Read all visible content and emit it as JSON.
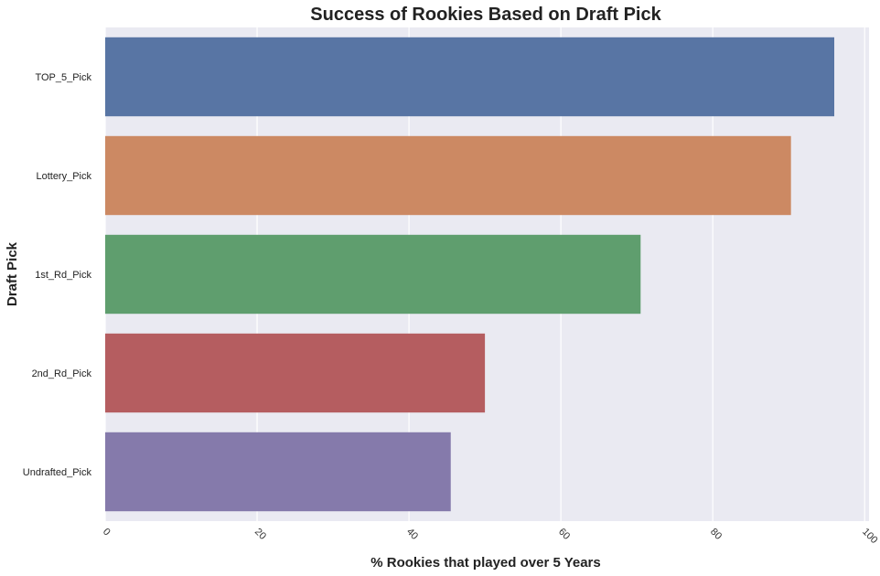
{
  "chart_data": {
    "type": "bar",
    "orientation": "horizontal",
    "title": "Success of Rookies Based on Draft Pick",
    "xlabel": "% Rookies that played over 5 Years",
    "ylabel": "Draft Pick",
    "categories": [
      "TOP_5_Pick",
      "Lottery_Pick",
      "1st_Rd_Pick",
      "2nd_Rd_Pick",
      "Undrafted_Pick"
    ],
    "values": [
      96.0,
      90.3,
      70.5,
      50.0,
      45.5
    ],
    "colors": [
      "#5875a4",
      "#cc8963",
      "#5f9e6e",
      "#b55d60",
      "#857aab"
    ],
    "xlim": [
      0,
      100
    ],
    "xticks": [
      0,
      20,
      40,
      60,
      80,
      100
    ],
    "grid": true,
    "background": "#eaeaf2"
  }
}
